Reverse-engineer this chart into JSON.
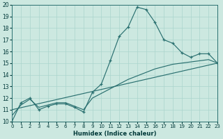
{
  "xlabel": "Humidex (Indice chaleur)",
  "xlim": [
    0,
    23
  ],
  "ylim": [
    10,
    20
  ],
  "yticks": [
    10,
    11,
    12,
    13,
    14,
    15,
    16,
    17,
    18,
    19,
    20
  ],
  "xticks": [
    0,
    1,
    2,
    3,
    4,
    5,
    6,
    7,
    8,
    9,
    10,
    11,
    12,
    13,
    14,
    15,
    16,
    17,
    18,
    19,
    20,
    21,
    22,
    23
  ],
  "bg_color": "#cce8e0",
  "grid_color": "#aad4cc",
  "line_color": "#2a7070",
  "line1_x": [
    0,
    1,
    2,
    3,
    4,
    5,
    6,
    7,
    8,
    9,
    10,
    11,
    12,
    13,
    14,
    15,
    16,
    17,
    18,
    19,
    20,
    21,
    22,
    23
  ],
  "line1_y": [
    10.0,
    11.6,
    12.0,
    11.0,
    11.3,
    11.5,
    11.5,
    11.2,
    10.8,
    12.5,
    13.2,
    15.2,
    17.3,
    18.1,
    19.8,
    19.6,
    18.5,
    17.0,
    16.7,
    15.9,
    15.5,
    15.8,
    15.8,
    15.0
  ],
  "line2_x": [
    0,
    1,
    2,
    3,
    4,
    5,
    6,
    7,
    8,
    9,
    10,
    11,
    12,
    13,
    14,
    15,
    16,
    17,
    18,
    19,
    20,
    21,
    22,
    23
  ],
  "line2_y": [
    10.5,
    11.4,
    11.9,
    11.2,
    11.4,
    11.6,
    11.6,
    11.3,
    11.0,
    12.0,
    12.4,
    12.8,
    13.2,
    13.6,
    13.9,
    14.2,
    14.5,
    14.7,
    14.9,
    15.0,
    15.1,
    15.2,
    15.3,
    15.0
  ],
  "line3_x": [
    0,
    23
  ],
  "line3_y": [
    11.0,
    15.0
  ]
}
